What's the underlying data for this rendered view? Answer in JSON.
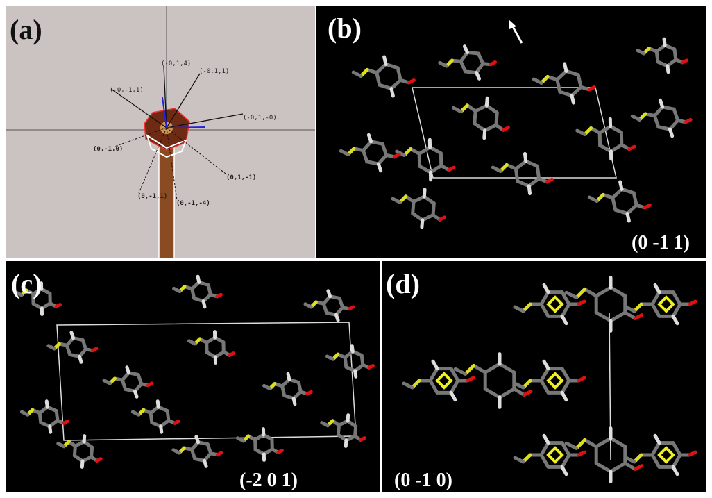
{
  "panels": [
    {
      "label": "(a)",
      "annotations": [
        "(-0,1,4)",
        "(-0,1,1)",
        "(-0,-1,1)",
        "(-0,1,-0)",
        "(0,-1,0)",
        "(0,1,-1)",
        "(0,-1,1)",
        "(0,-1,-4)"
      ]
    },
    {
      "label": "(b)",
      "orientation": "(0 -1 1)"
    },
    {
      "label": "(c)",
      "orientation": "(-2 0 1)"
    },
    {
      "label": "(d)",
      "orientation": "(0 -1 0)"
    }
  ]
}
